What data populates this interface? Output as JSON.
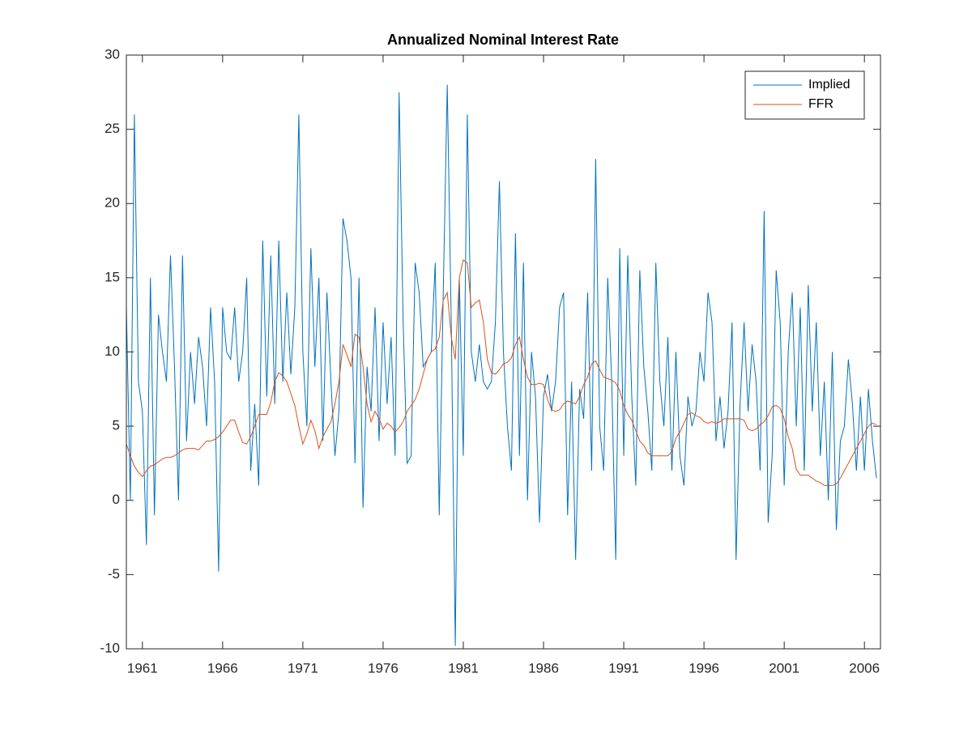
{
  "chart_data": {
    "type": "line",
    "title": "Annualized Nominal Interest Rate",
    "x": [
      1960,
      1960.25,
      1960.5,
      1960.75,
      1961,
      1961.25,
      1961.5,
      1961.75,
      1962,
      1962.25,
      1962.5,
      1962.75,
      1963,
      1963.25,
      1963.5,
      1963.75,
      1964,
      1964.25,
      1964.5,
      1964.75,
      1965,
      1965.25,
      1965.5,
      1965.75,
      1966,
      1966.25,
      1966.5,
      1966.75,
      1967,
      1967.25,
      1967.5,
      1967.75,
      1968,
      1968.25,
      1968.5,
      1968.75,
      1969,
      1969.25,
      1969.5,
      1969.75,
      1970,
      1970.25,
      1970.5,
      1970.75,
      1971,
      1971.25,
      1971.5,
      1971.75,
      1972,
      1972.25,
      1972.5,
      1972.75,
      1973,
      1973.25,
      1973.5,
      1973.75,
      1974,
      1974.25,
      1974.5,
      1974.75,
      1975,
      1975.25,
      1975.5,
      1975.75,
      1976,
      1976.25,
      1976.5,
      1976.75,
      1977,
      1977.25,
      1977.5,
      1977.75,
      1978,
      1978.25,
      1978.5,
      1978.75,
      1979,
      1979.25,
      1979.5,
      1979.75,
      1980,
      1980.25,
      1980.5,
      1980.75,
      1981,
      1981.25,
      1981.5,
      1981.75,
      1982,
      1982.25,
      1982.5,
      1982.75,
      1983,
      1983.25,
      1983.5,
      1983.75,
      1984,
      1984.25,
      1984.5,
      1984.75,
      1985,
      1985.25,
      1985.5,
      1985.75,
      1986,
      1986.25,
      1986.5,
      1986.75,
      1987,
      1987.25,
      1987.5,
      1987.75,
      1988,
      1988.25,
      1988.5,
      1988.75,
      1989,
      1989.25,
      1989.5,
      1989.75,
      1990,
      1990.25,
      1990.5,
      1990.75,
      1991,
      1991.25,
      1991.5,
      1991.75,
      1992,
      1992.25,
      1992.5,
      1992.75,
      1993,
      1993.25,
      1993.5,
      1993.75,
      1994,
      1994.25,
      1994.5,
      1994.75,
      1995,
      1995.25,
      1995.5,
      1995.75,
      1996,
      1996.25,
      1996.5,
      1996.75,
      1997,
      1997.25,
      1997.5,
      1997.75,
      1998,
      1998.25,
      1998.5,
      1998.75,
      1999,
      1999.25,
      1999.5,
      1999.75,
      2000,
      2000.25,
      2000.5,
      2000.75,
      2001,
      2001.25,
      2001.5,
      2001.75,
      2002,
      2002.25,
      2002.5,
      2002.75,
      2003,
      2003.25,
      2003.5,
      2003.75,
      2004,
      2004.25,
      2004.5,
      2004.75,
      2005,
      2005.25,
      2005.5,
      2005.75,
      2006,
      2006.25,
      2006.5,
      2006.75
    ],
    "series": [
      {
        "name": "Implied",
        "color": "#0072BD",
        "values": [
          13,
          0,
          26,
          8,
          6,
          -3,
          15,
          -1,
          12.5,
          10,
          8,
          16.5,
          9,
          0,
          16.5,
          4,
          10,
          6.5,
          11,
          9,
          5,
          13,
          8,
          -4.8,
          13,
          10,
          9.5,
          13,
          8,
          10,
          15,
          2,
          6.5,
          1,
          17.5,
          7,
          16.5,
          6.5,
          17.5,
          8,
          14,
          8.5,
          13,
          26,
          10,
          5,
          17,
          9,
          15,
          4,
          14,
          8,
          3,
          6,
          19,
          17.5,
          15,
          2.5,
          15,
          -0.5,
          9,
          6,
          13,
          4,
          12,
          6.5,
          11,
          3,
          27.5,
          12,
          2.5,
          3,
          16,
          14,
          9,
          9.5,
          10,
          16,
          -1,
          14,
          28,
          12,
          -9.8,
          15,
          3,
          26,
          10,
          8,
          10.5,
          8,
          7.5,
          8,
          12,
          21.5,
          10,
          5,
          2,
          18,
          3,
          16,
          0,
          10,
          7,
          -1.5,
          7,
          8.5,
          6,
          8,
          13,
          14,
          -1,
          8,
          -4,
          7.5,
          5.5,
          14,
          2,
          23,
          5,
          2,
          15,
          8,
          -4,
          17,
          3,
          16.5,
          7,
          1,
          15.5,
          9,
          6,
          2,
          16,
          8,
          5,
          11,
          2,
          10,
          3,
          1,
          7,
          5,
          6,
          10,
          8,
          14,
          12,
          4,
          7,
          3.5,
          6,
          12,
          -4,
          6.5,
          12,
          6,
          10.5,
          8,
          2,
          19.5,
          -1.5,
          3,
          15.5,
          12,
          1,
          10,
          14,
          5,
          13,
          2,
          14.5,
          6,
          12,
          3,
          8,
          0,
          10,
          -2,
          4,
          5,
          9.5,
          6.5,
          2,
          7,
          2,
          7.5,
          4,
          1.5
        ]
      },
      {
        "name": "FFR",
        "color": "#D95319",
        "values": [
          3.8,
          3.0,
          2.3,
          1.9,
          1.6,
          2.0,
          2.3,
          2.4,
          2.6,
          2.8,
          2.9,
          2.9,
          3.0,
          3.2,
          3.4,
          3.5,
          3.5,
          3.5,
          3.4,
          3.7,
          4.0,
          4.0,
          4.1,
          4.3,
          4.6,
          5.0,
          5.4,
          5.4,
          4.6,
          3.9,
          3.8,
          4.3,
          5.0,
          5.8,
          5.8,
          5.8,
          6.6,
          8.0,
          8.6,
          8.4,
          8.0,
          7.2,
          6.4,
          5.0,
          3.8,
          4.5,
          5.4,
          4.7,
          3.5,
          4.3,
          4.8,
          5.3,
          6.5,
          8.0,
          10.5,
          9.8,
          9.0,
          11.2,
          11.0,
          9.0,
          6.5,
          5.3,
          6.0,
          5.5,
          4.8,
          5.2,
          5.0,
          4.6,
          4.9,
          5.3,
          6.0,
          6.4,
          6.8,
          7.5,
          8.5,
          9.5,
          10.0,
          10.2,
          11.0,
          13.5,
          14.0,
          11.0,
          9.5,
          15.0,
          16.2,
          16.0,
          13.0,
          13.3,
          13.5,
          12.0,
          9.5,
          8.6,
          8.5,
          8.8,
          9.2,
          9.3,
          9.6,
          10.5,
          11.0,
          9.5,
          8.3,
          7.8,
          7.8,
          7.9,
          7.8,
          6.8,
          6.1,
          6.0,
          6.1,
          6.5,
          6.7,
          6.6,
          6.5,
          7.0,
          7.8,
          8.3,
          9.2,
          9.4,
          8.8,
          8.3,
          8.2,
          8.1,
          7.9,
          7.4,
          6.4,
          5.8,
          5.4,
          4.7,
          4.0,
          3.7,
          3.2,
          3.0,
          3.0,
          3.0,
          3.0,
          3.0,
          3.3,
          4.2,
          4.6,
          5.2,
          5.8,
          5.9,
          5.7,
          5.6,
          5.3,
          5.2,
          5.3,
          5.2,
          5.3,
          5.5,
          5.5,
          5.5,
          5.5,
          5.5,
          5.4,
          4.8,
          4.7,
          4.8,
          5.1,
          5.3,
          5.7,
          6.3,
          6.4,
          6.2,
          5.5,
          4.3,
          3.5,
          2.1,
          1.7,
          1.7,
          1.7,
          1.5,
          1.3,
          1.2,
          1.0,
          1.0,
          1.0,
          1.1,
          1.5,
          2.0,
          2.5,
          3.0,
          3.5,
          4.0,
          4.5,
          5.0,
          5.2,
          5.1
        ]
      }
    ],
    "xlim": [
      1960,
      2007
    ],
    "xticks": [
      1961,
      1966,
      1971,
      1976,
      1981,
      1986,
      1991,
      1996,
      2001,
      2006
    ],
    "ylim": [
      -10,
      30
    ],
    "yticks": [
      -10,
      -5,
      0,
      5,
      10,
      15,
      20,
      25,
      30
    ],
    "grid": false,
    "legend": "northeast"
  }
}
